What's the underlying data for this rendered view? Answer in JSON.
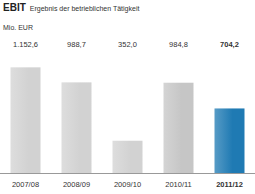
{
  "chart_data": {
    "type": "bar",
    "title": "EBIT",
    "subtitle": "Ergebnis der betrieblichen Tätigkeit",
    "y_label": "Mio. EUR",
    "categories": [
      "2007/08",
      "2008/09",
      "2009/10",
      "2010/11",
      "2011/12"
    ],
    "values": [
      1152.6,
      988.7,
      352.0,
      984.8,
      704.2
    ],
    "value_labels": [
      "1.152,6",
      "988,7",
      "352,0",
      "984,8",
      "704,2"
    ],
    "colors": [
      "#d2d2d2",
      "#d2d2d2",
      "#d2d2d2",
      "#c6c6c6",
      "#1f7ab3"
    ],
    "ylim": [
      0,
      1200
    ],
    "data_labels": true,
    "tick_labels": "x",
    "grid": false
  }
}
